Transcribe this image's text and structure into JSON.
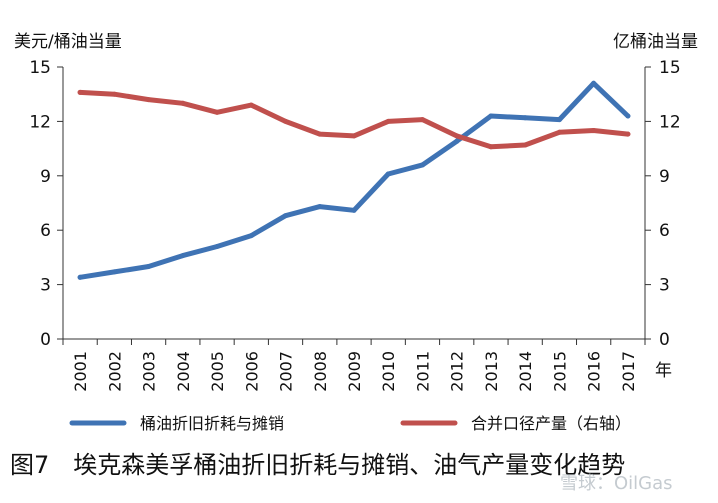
{
  "chart_data": {
    "type": "line",
    "caption": "图7　埃克森美孚桶油折旧折耗与摊销、油气产量变化趋势",
    "left_axis_title": "美元/桶油当量",
    "right_axis_title": "亿桶油当量",
    "x_unit": "年",
    "x": [
      "2001",
      "2002",
      "2003",
      "2004",
      "2005",
      "2006",
      "2007",
      "2008",
      "2009",
      "2010",
      "2011",
      "2012",
      "2013",
      "2014",
      "2015",
      "2016",
      "2017"
    ],
    "left_ylim": [
      0,
      15
    ],
    "right_ylim": [
      0,
      15
    ],
    "left_ticks": [
      "0",
      "3",
      "6",
      "9",
      "12",
      "15"
    ],
    "right_ticks": [
      "0",
      "3",
      "6",
      "9",
      "12",
      "15"
    ],
    "series": [
      {
        "name": "桶油折旧折耗与摊销",
        "axis": "left",
        "color": "#3f73b4",
        "values": [
          3.4,
          3.7,
          4.0,
          4.6,
          5.1,
          5.7,
          6.8,
          7.3,
          7.1,
          9.1,
          9.6,
          10.9,
          12.3,
          12.2,
          12.1,
          14.1,
          12.3
        ]
      },
      {
        "name": "合并口径产量（右轴）",
        "axis": "right",
        "color": "#c0504d",
        "values": [
          13.6,
          13.5,
          13.2,
          13.0,
          12.5,
          12.9,
          12.0,
          11.3,
          11.2,
          12.0,
          12.1,
          11.2,
          10.6,
          10.7,
          11.4,
          11.5,
          11.3
        ]
      }
    ],
    "grid": false,
    "legend_position": "bottom"
  },
  "watermark": "雪球：OilGas"
}
